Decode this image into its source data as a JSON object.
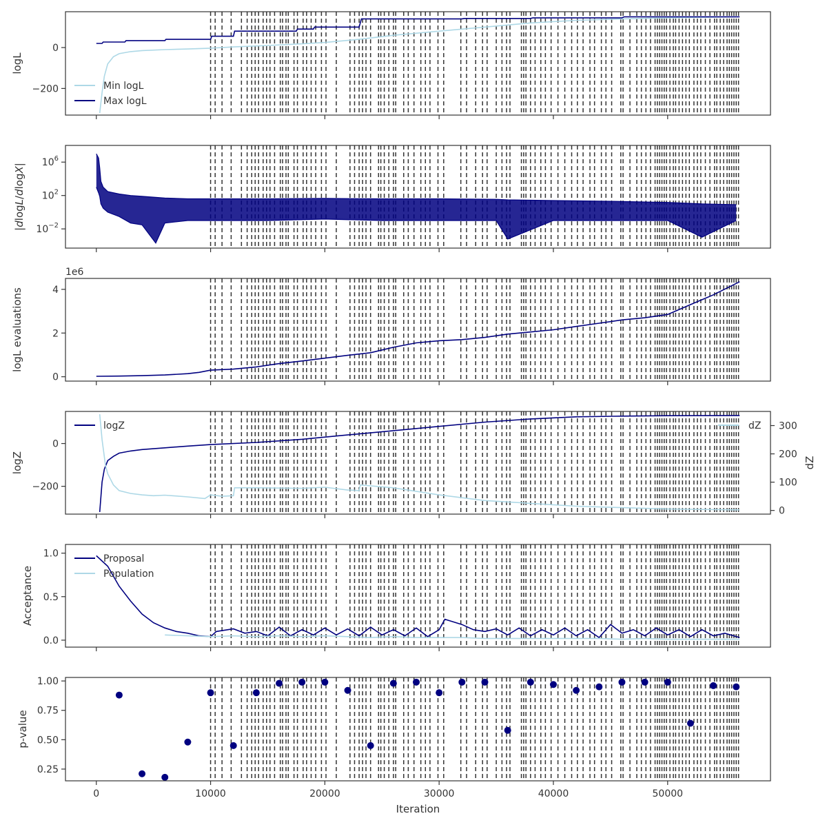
{
  "figure": {
    "xlabel": "Iteration",
    "x_ticks": [
      0,
      10000,
      20000,
      30000,
      40000,
      50000
    ],
    "x_tick_labels": [
      "0",
      "10000",
      "20000",
      "30000",
      "40000",
      "50000"
    ],
    "xlim": [
      -2700,
      59000
    ]
  },
  "colors": {
    "dark": "#000080",
    "light": "#add8e6",
    "vline": "#333333",
    "axis": "#333333"
  },
  "chart_data": [
    {
      "id": "logl",
      "type": "line",
      "ylabel": "logL",
      "ylim": [
        -330,
        175
      ],
      "yticks": [
        0,
        -200
      ],
      "ytick_labels": [
        "0",
        "−200"
      ],
      "legend": "bottom-left",
      "series": [
        {
          "name": "Min logL",
          "color": "light",
          "x": [
            300,
            500,
            700,
            1000,
            1500,
            2000,
            3000,
            4000,
            6000,
            8000,
            10000,
            12000,
            15000,
            18000,
            20000,
            23000,
            26000,
            30000,
            34000,
            38000,
            42000,
            46000,
            50000,
            54000,
            56000
          ],
          "y": [
            -320,
            -220,
            -140,
            -80,
            -45,
            -30,
            -20,
            -15,
            -10,
            -7,
            -3,
            3,
            10,
            18,
            25,
            40,
            60,
            80,
            100,
            120,
            133,
            140,
            145,
            148,
            150
          ]
        },
        {
          "name": "Max logL",
          "color": "dark",
          "x": [
            0,
            500,
            600,
            2500,
            2600,
            6000,
            6100,
            10000,
            10100,
            12000,
            12100,
            17500,
            17600,
            19000,
            19100,
            23000,
            23200,
            32000,
            32200,
            38000,
            38200,
            46000,
            46200,
            56300
          ],
          "y": [
            20,
            20,
            27,
            27,
            34,
            34,
            40,
            40,
            55,
            55,
            80,
            80,
            90,
            90,
            100,
            100,
            140,
            140,
            142,
            142,
            145,
            145,
            150,
            150
          ]
        }
      ]
    },
    {
      "id": "dlogl",
      "type": "line",
      "ylabel": "|dlogL/dlogX|",
      "yscale": "log",
      "ylim": [
        5e-05,
        100000000
      ],
      "yticks": [
        1000000,
        100,
        0.01
      ],
      "ytick_labels": [
        "10^6",
        "10^2",
        "10^−2"
      ],
      "series": [
        {
          "name": "",
          "color": "dark",
          "x": [
            0,
            200,
            300,
            400,
            600,
            1000,
            2000,
            3000,
            4000,
            5200,
            6000,
            8000,
            10000,
            15000,
            20000,
            25000,
            30000,
            35000,
            36000,
            40000,
            45000,
            50000,
            53000,
            56000
          ],
          "y": [
            10000000,
            3000000,
            200000,
            5000,
            1000,
            300,
            150,
            100,
            80,
            60,
            50,
            40,
            40,
            40,
            45,
            40,
            40,
            35,
            30,
            25,
            20,
            15,
            10,
            8
          ]
        },
        {
          "name": "",
          "color": "dark",
          "x": [
            0,
            200,
            300,
            400,
            600,
            1000,
            2000,
            3000,
            4000,
            5200,
            6000,
            8000,
            10000,
            15000,
            20000,
            25000,
            30000,
            35000,
            36000,
            40000,
            45000,
            50000,
            53000,
            56000
          ],
          "y": [
            1000,
            200,
            80,
            10,
            3,
            1,
            0.3,
            0.05,
            0.03,
            0.0002,
            0.05,
            0.1,
            0.1,
            0.1,
            0.15,
            0.1,
            0.1,
            0.1,
            0.0006,
            0.1,
            0.1,
            0.1,
            0.001,
            0.1
          ]
        }
      ]
    },
    {
      "id": "evals",
      "type": "line",
      "ylabel": "logL evaluations",
      "offset_label": "1e6",
      "ylim": [
        -0.2,
        4.5
      ],
      "yticks": [
        0,
        2,
        4
      ],
      "ytick_labels": [
        "0",
        "2",
        "4"
      ],
      "series": [
        {
          "name": "",
          "color": "dark",
          "x": [
            0,
            2000,
            4000,
            6000,
            8000,
            9000,
            10000,
            12000,
            14000,
            16000,
            18000,
            20000,
            22000,
            24000,
            26000,
            28000,
            30000,
            32000,
            34000,
            36000,
            38000,
            40000,
            42000,
            44000,
            46000,
            48000,
            50000,
            52000,
            54000,
            56300
          ],
          "y": [
            0.02,
            0.03,
            0.05,
            0.08,
            0.14,
            0.2,
            0.3,
            0.35,
            0.45,
            0.6,
            0.72,
            0.85,
            0.98,
            1.1,
            1.35,
            1.55,
            1.65,
            1.7,
            1.8,
            1.95,
            2.05,
            2.15,
            2.3,
            2.45,
            2.6,
            2.7,
            2.85,
            3.3,
            3.75,
            4.35
          ]
        }
      ]
    },
    {
      "id": "logz",
      "type": "line",
      "ylabel": "logZ",
      "ylabel_right": "dZ",
      "ylim": [
        -330,
        150
      ],
      "yticks": [
        0,
        -200
      ],
      "ytick_labels": [
        "0",
        "−200"
      ],
      "ylim_right": [
        -13,
        350
      ],
      "yticks_right": [
        0,
        100,
        200,
        300
      ],
      "ytick_labels_right": [
        "0",
        "100",
        "200",
        "300"
      ],
      "legend": "top-left (logZ), top-right (dZ)",
      "series": [
        {
          "name": "logZ",
          "color": "dark",
          "axis": "left",
          "x": [
            300,
            500,
            700,
            1000,
            1500,
            2000,
            3000,
            4000,
            6000,
            8000,
            10000,
            14000,
            18000,
            22000,
            26000,
            30000,
            34000,
            38000,
            42000,
            46000,
            50000,
            56300
          ],
          "y": [
            -320,
            -180,
            -120,
            -80,
            -60,
            -45,
            -35,
            -28,
            -20,
            -12,
            -5,
            5,
            20,
            40,
            60,
            80,
            100,
            115,
            125,
            128,
            130,
            131
          ]
        },
        {
          "name": "dZ",
          "color": "light",
          "axis": "right",
          "x": [
            300,
            500,
            800,
            1000,
            1500,
            2000,
            3000,
            4000,
            5000,
            6000,
            8000,
            9500,
            10000,
            11000,
            12000,
            12100,
            14000,
            18000,
            20000,
            22000,
            22200,
            23000,
            23100,
            26000,
            30000,
            34000,
            38000,
            42000,
            46000,
            50000,
            56300
          ],
          "y": [
            340,
            250,
            160,
            130,
            90,
            70,
            60,
            55,
            52,
            54,
            48,
            42,
            55,
            50,
            52,
            80,
            80,
            78,
            82,
            72,
            72,
            70,
            90,
            80,
            55,
            35,
            25,
            15,
            10,
            5,
            2
          ]
        }
      ]
    },
    {
      "id": "acceptance",
      "type": "line",
      "ylabel": "Acceptance",
      "ylim": [
        -0.08,
        1.1
      ],
      "yticks": [
        0,
        0.5,
        1.0
      ],
      "ytick_labels": [
        "0.0",
        "0.5",
        "1.0"
      ],
      "legend": "top-left",
      "series": [
        {
          "name": "Proposal",
          "color": "dark",
          "x": [
            0,
            1000,
            2000,
            3000,
            4000,
            5000,
            6000,
            7000,
            8000,
            9000,
            10000,
            10500,
            12000,
            13000,
            14000,
            15000,
            16000,
            17000,
            18000,
            19000,
            20000,
            21000,
            22000,
            23000,
            24000,
            25000,
            26000,
            27000,
            28000,
            29000,
            30000,
            30500,
            31000,
            32000,
            33000,
            34000,
            35000,
            36000,
            37000,
            38000,
            39000,
            40000,
            41000,
            42000,
            43000,
            44000,
            45000,
            46000,
            47000,
            48000,
            49000,
            50000,
            51000,
            52000,
            53000,
            54000,
            55000,
            56300
          ],
          "y": [
            0.97,
            0.85,
            0.62,
            0.45,
            0.3,
            0.2,
            0.14,
            0.1,
            0.08,
            0.05,
            0.04,
            0.1,
            0.13,
            0.08,
            0.1,
            0.05,
            0.15,
            0.05,
            0.12,
            0.06,
            0.14,
            0.06,
            0.13,
            0.05,
            0.15,
            0.06,
            0.12,
            0.05,
            0.14,
            0.04,
            0.12,
            0.24,
            0.22,
            0.18,
            0.12,
            0.1,
            0.13,
            0.06,
            0.14,
            0.05,
            0.12,
            0.06,
            0.14,
            0.05,
            0.12,
            0.03,
            0.18,
            0.08,
            0.12,
            0.05,
            0.14,
            0.06,
            0.12,
            0.04,
            0.12,
            0.05,
            0.08,
            0.03
          ]
        },
        {
          "name": "Population",
          "color": "light",
          "x": [
            6000,
            8000,
            10000,
            12000,
            14000,
            16000,
            18000,
            20000,
            22000,
            24000,
            26000,
            28000,
            30000,
            32000,
            34000,
            36000,
            38000,
            40000,
            42000,
            44000,
            46000,
            48000,
            50000,
            52000,
            54000,
            56300
          ],
          "y": [
            0.06,
            0.05,
            0.04,
            0.05,
            0.04,
            0.05,
            0.04,
            0.05,
            0.04,
            0.03,
            0.04,
            0.03,
            0.03,
            0.03,
            0.02,
            0.02,
            0.02,
            0.02,
            0.02,
            0.02,
            0.01,
            0.02,
            0.01,
            0.01,
            0.01,
            0.01
          ]
        }
      ]
    },
    {
      "id": "pvalue",
      "type": "scatter",
      "ylabel": "p-value",
      "ylim": [
        0.15,
        1.03
      ],
      "yticks": [
        0.25,
        0.5,
        0.75,
        1.0
      ],
      "ytick_labels": [
        "0.25",
        "0.50",
        "0.75",
        "1.00"
      ],
      "series": [
        {
          "name": "",
          "color": "dark",
          "x": [
            2000,
            4000,
            6000,
            8000,
            10000,
            12000,
            14000,
            16000,
            18000,
            20000,
            22000,
            24000,
            26000,
            28000,
            30000,
            32000,
            34000,
            36000,
            38000,
            40000,
            42000,
            44000,
            46000,
            48000,
            50000,
            52000,
            54000,
            56000
          ],
          "y": [
            0.88,
            0.21,
            0.18,
            0.48,
            0.9,
            0.45,
            0.9,
            0.98,
            0.99,
            0.99,
            0.92,
            0.45,
            0.98,
            0.99,
            0.9,
            0.99,
            0.99,
            0.58,
            0.99,
            0.97,
            0.92,
            0.95,
            0.99,
            0.99,
            0.99,
            0.64,
            0.96,
            0.95
          ]
        }
      ]
    }
  ],
  "vlines": [
    10000,
    10400,
    11000,
    11800,
    12700,
    13200,
    13600,
    13900,
    14200,
    14600,
    14900,
    15200,
    15600,
    16100,
    16300,
    16600,
    16800,
    17300,
    17600,
    18100,
    18400,
    18800,
    19200,
    19700,
    20100,
    21000,
    22200,
    22600,
    23000,
    23300,
    23600,
    24000,
    24700,
    24900,
    25200,
    25600,
    26000,
    26200,
    26900,
    27300,
    27800,
    28400,
    28800,
    29200,
    29900,
    30400,
    31900,
    32400,
    33200,
    33800,
    34200,
    35000,
    35500,
    35900,
    36200,
    37200,
    37400,
    37600,
    38000,
    38400,
    38900,
    39300,
    39800,
    40400,
    41000,
    41600,
    42100,
    42600,
    43200,
    43600,
    44200,
    44600,
    45100,
    45900,
    46100,
    46700,
    47300,
    47700,
    48100,
    48500,
    48900,
    49100,
    49300,
    49500,
    49700,
    49900,
    50200,
    50500,
    50700,
    51000,
    51300,
    51600,
    51900,
    52300,
    52600,
    52900,
    53300,
    53700,
    54100,
    54300,
    54600,
    54900,
    55200,
    55400,
    55600,
    55800,
    56000,
    56200
  ]
}
